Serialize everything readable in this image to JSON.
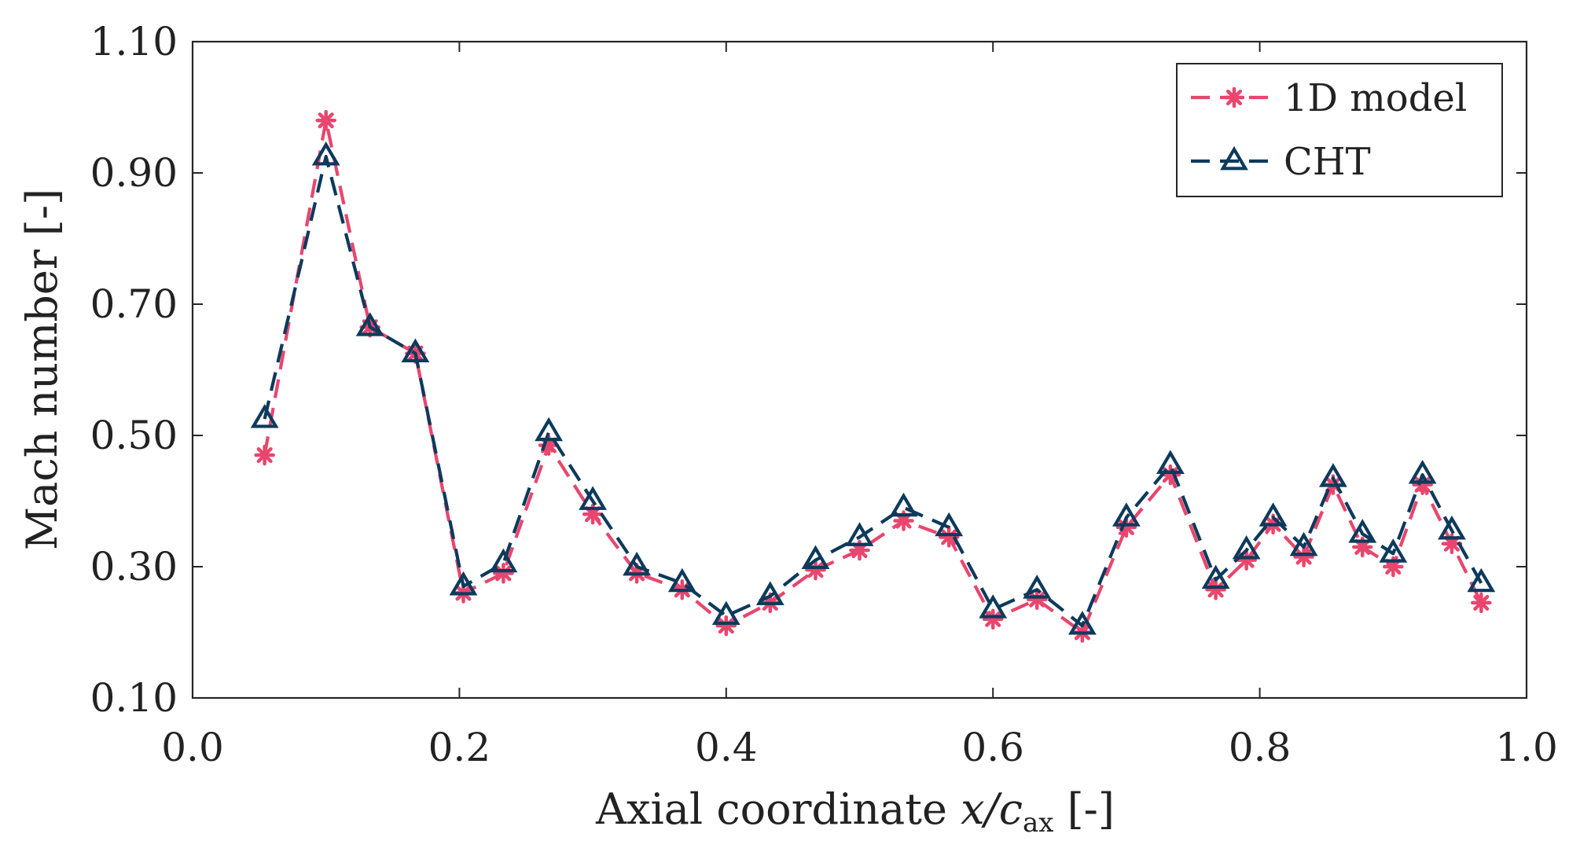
{
  "chart_data": {
    "type": "line",
    "title": "",
    "xlabel_parts": {
      "prefix": "Axial coordinate ",
      "var": "x/c",
      "sub": "ax",
      "suffix": " [-]"
    },
    "ylabel": "Mach number [-]",
    "xlim": [
      0.0,
      1.0
    ],
    "ylim": [
      0.1,
      1.1
    ],
    "xticks": [
      0.0,
      0.2,
      0.4,
      0.6,
      0.8,
      1.0
    ],
    "xtick_labels": [
      "0.0",
      "0.2",
      "0.4",
      "0.6",
      "0.8",
      "1.0"
    ],
    "yticks": [
      0.1,
      0.3,
      0.5,
      0.7,
      0.9,
      1.1
    ],
    "ytick_labels": [
      "0.10",
      "0.30",
      "0.50",
      "0.70",
      "0.90",
      "1.10"
    ],
    "grid": false,
    "legend_position": "top-right",
    "x": [
      0.054,
      0.1,
      0.133,
      0.167,
      0.203,
      0.233,
      0.267,
      0.3,
      0.333,
      0.367,
      0.4,
      0.433,
      0.467,
      0.5,
      0.533,
      0.567,
      0.6,
      0.633,
      0.667,
      0.7,
      0.733,
      0.767,
      0.79,
      0.81,
      0.833,
      0.855,
      0.877,
      0.9,
      0.922,
      0.944,
      0.966
    ],
    "series": [
      {
        "name": "1D model",
        "color": "#E8466E",
        "marker": "asterisk",
        "line": "dashed",
        "values": [
          0.47,
          0.98,
          0.665,
          0.625,
          0.26,
          0.29,
          0.485,
          0.38,
          0.29,
          0.265,
          0.21,
          0.245,
          0.295,
          0.325,
          0.37,
          0.345,
          0.22,
          0.25,
          0.2,
          0.36,
          0.44,
          0.265,
          0.31,
          0.365,
          0.315,
          0.425,
          0.33,
          0.3,
          0.425,
          0.335,
          0.245
        ]
      },
      {
        "name": "CHT",
        "color": "#0D3A5C",
        "marker": "triangle",
        "line": "dashed",
        "values": [
          0.525,
          0.925,
          0.665,
          0.625,
          0.27,
          0.305,
          0.505,
          0.4,
          0.3,
          0.275,
          0.225,
          0.255,
          0.31,
          0.345,
          0.39,
          0.36,
          0.235,
          0.265,
          0.21,
          0.375,
          0.455,
          0.28,
          0.325,
          0.375,
          0.33,
          0.435,
          0.35,
          0.32,
          0.44,
          0.355,
          0.275
        ]
      }
    ]
  }
}
